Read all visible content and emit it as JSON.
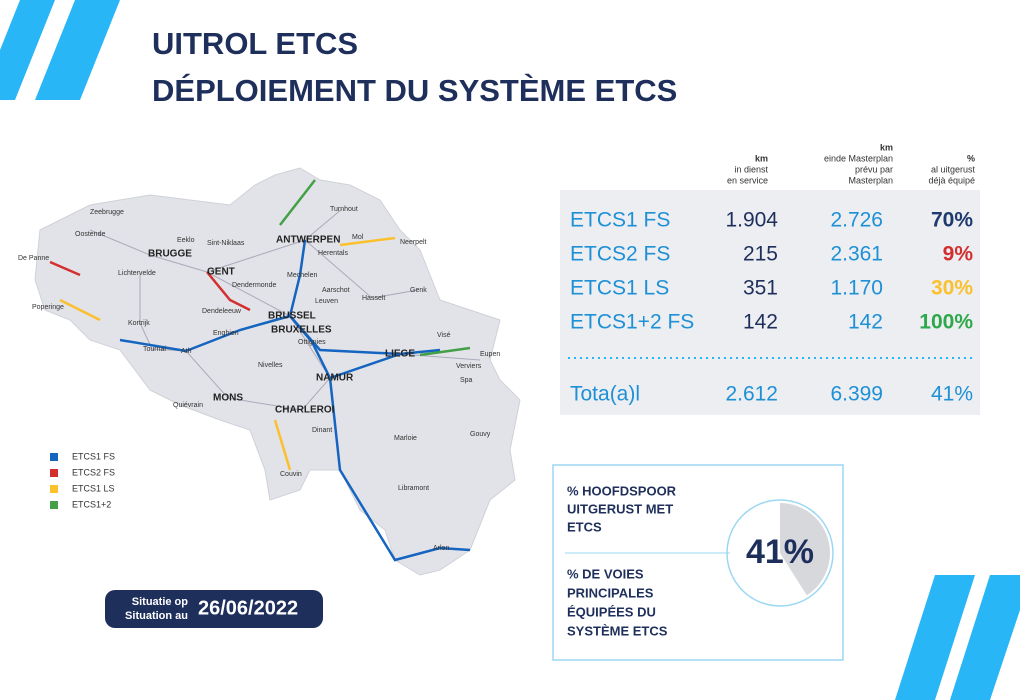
{
  "header": {
    "title_line1": "UITROL ETCS",
    "title_line2": "DÉPLOIEMENT DU SYSTÈME ETCS"
  },
  "table": {
    "columns": [
      [
        "km",
        "in dienst",
        "en service"
      ],
      [
        "km",
        "einde Masterplan",
        "prévu par",
        "Masterplan"
      ],
      [
        "%",
        "al uitgerust",
        "déjà équipé"
      ]
    ],
    "rows": [
      [
        "ETCS1 FS",
        "1.904",
        "2.726",
        "70%"
      ],
      [
        "ETCS2 FS",
        "215",
        "2.361",
        "9%"
      ],
      [
        "ETCS1  LS",
        "351",
        "1.170",
        "30%"
      ],
      [
        "ETCS1+2 FS",
        "142",
        "142",
        "100%"
      ]
    ],
    "total": [
      "Tota(a)l",
      "2.612",
      "6.399",
      "41%"
    ]
  },
  "legend": [
    {
      "label": "ETCS1 FS",
      "color": "#1565c0"
    },
    {
      "label": "ETCS2 FS",
      "color": "#d32f2f"
    },
    {
      "label": "ETCS1 LS",
      "color": "#fbc02d"
    },
    {
      "label": "ETCS1+2",
      "color": "#43a047"
    }
  ],
  "map": {
    "cities": [
      "Zeebrugge",
      "Oostende",
      "De Panne",
      "BRUGGE",
      "Eeklo",
      "Sint-Niklaas",
      "GENT",
      "Lichtervelde",
      "Dendermonde",
      "Poperinge",
      "Kortrijk",
      "Dendeleeuw",
      "Enghien",
      "Tournai",
      "Ath",
      "BRUSSEL",
      "BRUXELLES",
      "ANTWERPEN",
      "Turnhout",
      "Mol",
      "Neerpelt",
      "Herentals",
      "Mechelen",
      "Aarschot",
      "Hasselt",
      "Genk",
      "Leuven",
      "Ottignies",
      "Visé",
      "Eupen",
      "LIEGE",
      "Verviers",
      "Spa",
      "NAMUR",
      "Nivelles",
      "MONS",
      "CHARLEROI",
      "Quiévrain",
      "Dinant",
      "Marloie",
      "Gouvy",
      "Libramont",
      "Arlon",
      "Couvin"
    ]
  },
  "summary": {
    "lines_nl": [
      "% HOOFDSPOOR",
      "UITGERUST MET",
      "ETCS"
    ],
    "lines_fr": [
      "% DE VOIES",
      "PRINCIPALES",
      "ÉQUIPÉES DU",
      "SYSTÈME ETCS"
    ],
    "gauge": {
      "value": 41,
      "label": "41%"
    }
  },
  "date": {
    "label_nl": "Situatie op",
    "label_fr": "Situation au",
    "value": "26/06/2022"
  }
}
